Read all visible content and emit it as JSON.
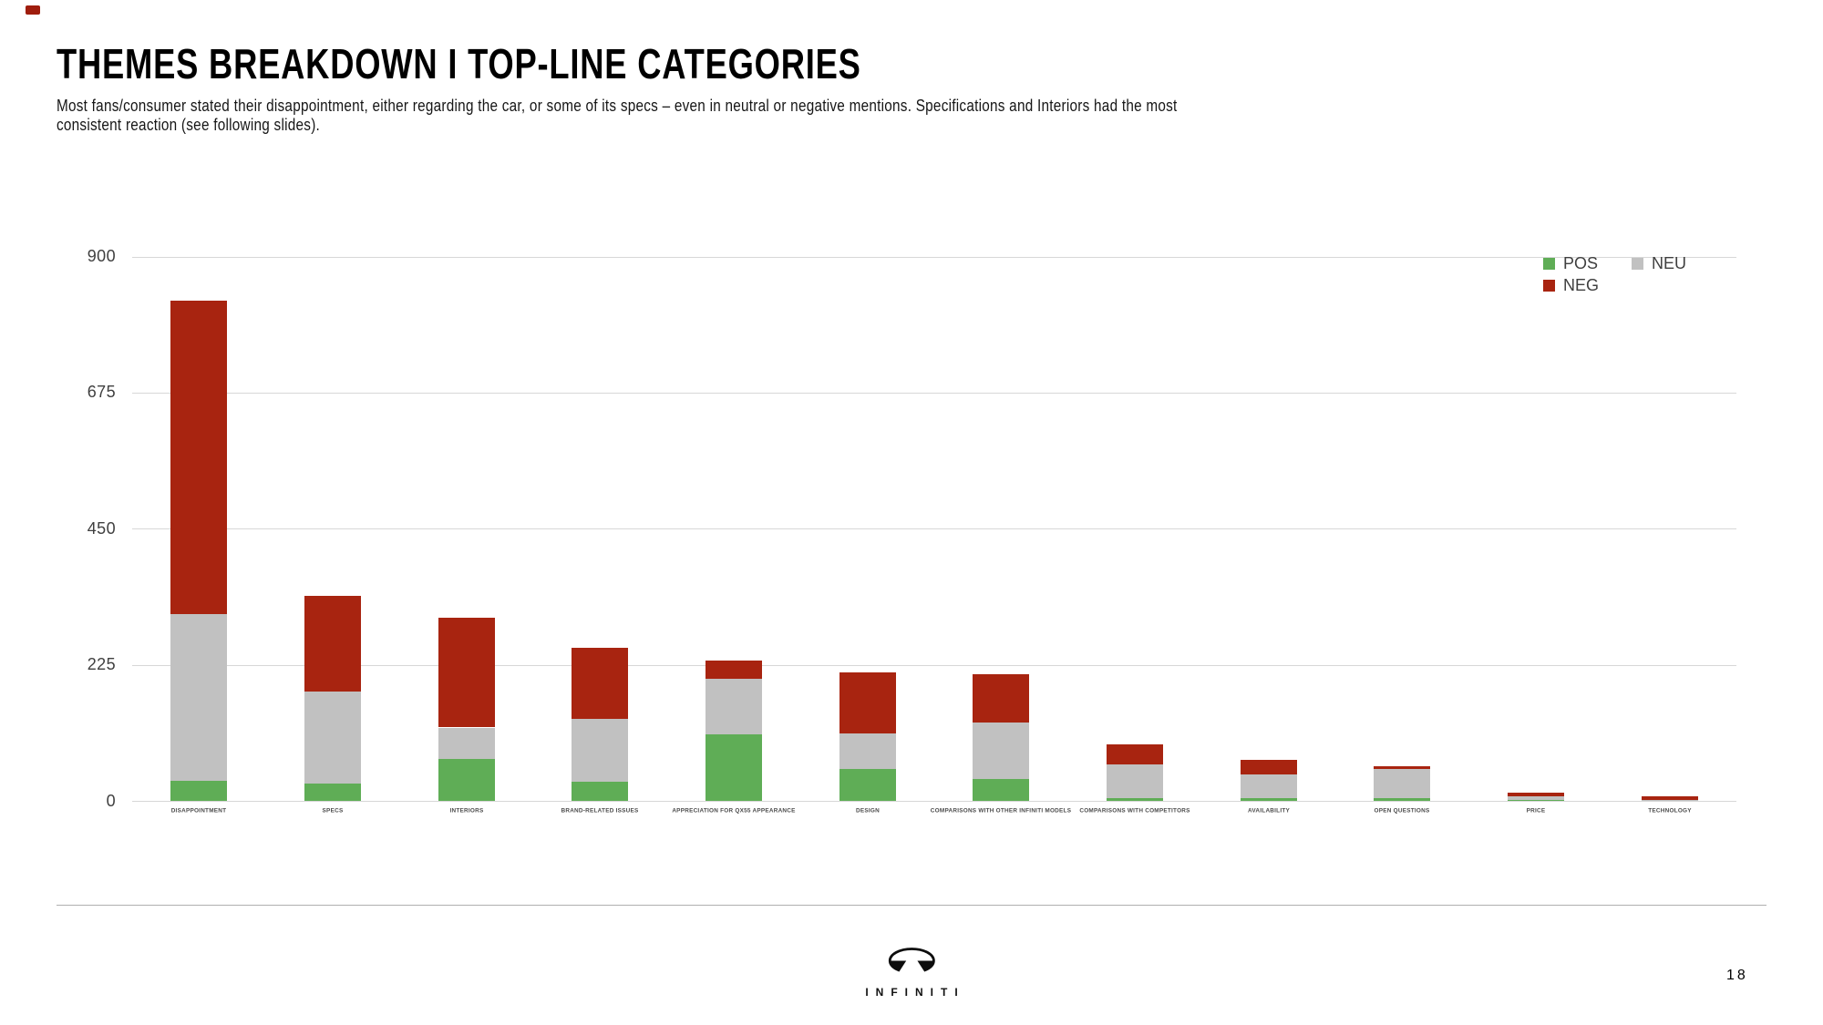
{
  "slide": {
    "title": "THEMES BREAKDOWN I TOP-LINE CATEGORIES",
    "subtitle_line1": "Most fans/consumer stated their disappointment, either regarding the car, or some of its specs – even in neutral or negative mentions. Specifications and Interiors had the most",
    "subtitle_line2": "consistent reaction (see following slides).",
    "page_number": "18",
    "brand_name": "INFINITI"
  },
  "legend": {
    "items": [
      {
        "label": "POS"
      },
      {
        "label": "NEU"
      },
      {
        "label": "NEG"
      }
    ]
  },
  "chart_data": {
    "type": "bar",
    "stacked": true,
    "title": "",
    "xlabel": "",
    "ylabel": "",
    "categories": [
      "DISAPPOINTMENT",
      "SPECS",
      "INTERIORS",
      "BRAND-RELATED ISSUES",
      "APPRECIATION FOR QX55 APPEARANCE",
      "DESIGN",
      "COMPARISONS WITH OTHER INFINITI MODELS",
      "COMPARISONS WITH COMPETITORS",
      "AVAILABILITY",
      "OPEN QUESTIONS",
      "PRICE",
      "TECHNOLOGY"
    ],
    "series": [
      {
        "name": "POS",
        "color": "#5fad56",
        "values": [
          34,
          30,
          70,
          32,
          110,
          53,
          37,
          6,
          6,
          5,
          2,
          0
        ]
      },
      {
        "name": "NEU",
        "color": "#c1c1c1",
        "values": [
          275,
          152,
          52,
          104,
          92,
          59,
          94,
          55,
          38,
          49,
          7,
          2
        ]
      },
      {
        "name": "NEG",
        "color": "#a82410",
        "values": [
          519,
          157,
          182,
          118,
          30,
          101,
          79,
          33,
          24,
          4,
          6,
          7
        ]
      }
    ],
    "ylim": [
      0,
      900
    ],
    "yticks": [
      0,
      225,
      450,
      675,
      900
    ],
    "grid": true,
    "legend_position": "top-right",
    "gridline_color": "#d7d7d7"
  }
}
